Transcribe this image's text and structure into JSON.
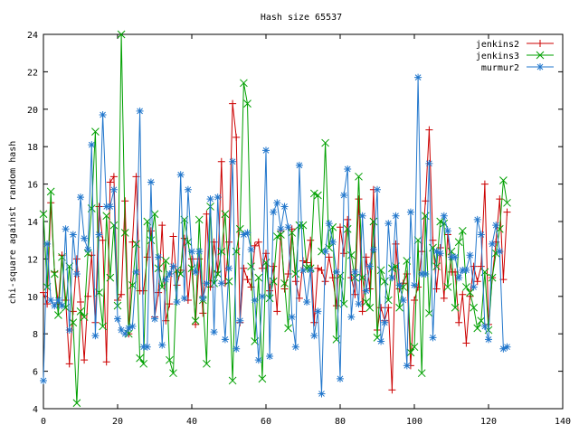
{
  "chart_data": {
    "type": "line",
    "title": "Hash size 65537",
    "xlabel": "",
    "ylabel": "chi-square against random hash",
    "xlim": [
      0,
      140
    ],
    "ylim": [
      4,
      24
    ],
    "xticks": [
      0,
      20,
      40,
      60,
      80,
      100,
      120,
      140
    ],
    "yticks": [
      4,
      6,
      8,
      10,
      12,
      14,
      16,
      18,
      20,
      22,
      24
    ],
    "grid": false,
    "legend_position": "top-right",
    "series": [
      {
        "name": "jenkins2",
        "color": "#cc0000",
        "marker": "plus",
        "y": [
          10.2,
          9.6,
          15.0,
          11.3,
          9.6,
          12.2,
          9.8,
          6.4,
          9.2,
          12.0,
          9.7,
          6.6,
          10.0,
          12.2,
          8.6,
          14.8,
          13.0,
          6.5,
          16.1,
          16.4,
          9.8,
          10.1,
          15.1,
          8.0,
          12.9,
          16.4,
          10.3,
          10.3,
          12.1,
          13.5,
          8.9,
          10.2,
          13.8,
          8.7,
          9.6,
          13.2,
          10.6,
          11.4,
          13.1,
          9.8,
          12.0,
          8.5,
          12.0,
          9.1,
          14.4,
          10.5,
          12.9,
          11.3,
          17.2,
          10.7,
          12.9,
          20.3,
          18.5,
          8.6,
          11.5,
          10.9,
          10.5,
          12.7,
          12.9,
          11.5,
          12.3,
          10.3,
          11.6,
          9.2,
          13.5,
          10.4,
          11.2,
          13.6,
          10.8,
          9.9,
          11.9,
          11.8,
          13.0,
          8.6,
          11.5,
          11.4,
          10.8,
          12.1,
          11.0,
          9.5,
          13.7,
          12.3,
          14.1,
          11.0,
          10.1,
          15.2,
          9.2,
          12.1,
          10.4,
          15.7,
          8.2,
          9.4,
          8.7,
          9.4,
          5.0,
          12.8,
          10.4,
          10.7,
          11.2,
          6.3,
          9.8,
          10.5,
          12.4,
          15.1,
          18.9,
          13.0,
          10.4,
          12.6,
          9.9,
          13.3,
          11.3,
          11.3,
          8.6,
          10.1,
          7.5,
          10.0,
          11.6,
          10.8,
          11.6,
          16.0,
          8.5,
          11.0,
          12.9,
          15.2,
          10.9,
          14.5
        ]
      },
      {
        "name": "jenkins3",
        "color": "#00a000",
        "marker": "cross",
        "y": [
          14.4,
          10.5,
          15.6,
          11.2,
          9.0,
          12.1,
          9.4,
          11.6,
          8.6,
          4.3,
          9.2,
          8.9,
          12.3,
          14.7,
          18.8,
          10.2,
          8.4,
          14.3,
          11.0,
          13.8,
          9.5,
          24.0,
          13.4,
          8.0,
          10.6,
          12.8,
          6.7,
          6.4,
          14.0,
          13.0,
          14.4,
          11.5,
          10.5,
          11.9,
          6.6,
          5.9,
          11.4,
          11.2,
          14.1,
          12.9,
          11.5,
          8.7,
          14.1,
          9.8,
          6.4,
          14.8,
          10.7,
          11.2,
          12.4,
          14.4,
          10.8,
          5.5,
          12.4,
          13.6,
          21.4,
          20.3,
          11.6,
          7.6,
          11.0,
          5.6,
          11.8,
          9.9,
          10.8,
          13.2,
          13.3,
          10.7,
          8.3,
          13.4,
          11.2,
          13.8,
          13.8,
          11.5,
          11.5,
          15.5,
          15.4,
          12.4,
          18.2,
          12.6,
          13.7,
          7.7,
          11.1,
          9.6,
          13.6,
          12.2,
          11.0,
          16.4,
          11.0,
          9.7,
          9.4,
          14.0,
          7.8,
          11.4,
          10.8,
          9.8,
          11.5,
          11.6,
          9.4,
          10.5,
          11.9,
          7.0,
          7.3,
          13.0,
          5.9,
          14.3,
          9.1,
          12.6,
          11.6,
          14.0,
          13.9,
          10.5,
          12.4,
          9.4,
          12.9,
          13.5,
          10.5,
          10.2,
          9.4,
          8.3,
          8.7,
          11.3,
          8.2,
          11.0,
          12.3,
          13.6,
          16.2,
          15.0
        ]
      },
      {
        "name": "murmur2",
        "color": "#2277cc",
        "marker": "star",
        "y": [
          5.5,
          12.8,
          9.8,
          9.5,
          9.8,
          9.5,
          13.6,
          8.2,
          13.3,
          11.2,
          15.3,
          13.1,
          12.5,
          18.1,
          7.9,
          13.3,
          19.7,
          14.8,
          14.8,
          15.7,
          8.8,
          8.2,
          8.0,
          8.3,
          8.4,
          11.3,
          19.9,
          7.3,
          7.3,
          16.1,
          8.8,
          12.1,
          7.4,
          10.9,
          11.2,
          11.6,
          9.7,
          16.5,
          9.9,
          15.7,
          12.4,
          11.3,
          12.4,
          9.9,
          10.7,
          15.2,
          8.1,
          15.3,
          10.7,
          7.7,
          11.5,
          17.2,
          7.2,
          8.7,
          13.3,
          13.4,
          12.5,
          9.8,
          6.6,
          10.0,
          17.8,
          6.8,
          14.5,
          15.0,
          13.6,
          14.8,
          13.7,
          8.9,
          7.3,
          17.0,
          11.4,
          9.7,
          11.4,
          7.9,
          9.2,
          4.8,
          12.4,
          13.9,
          12.9,
          11.3,
          5.6,
          15.4,
          16.8,
          8.9,
          11.3,
          9.6,
          14.3,
          10.3,
          11.6,
          12.5,
          15.7,
          7.6,
          8.6,
          13.9,
          11.0,
          14.3,
          10.6,
          9.8,
          6.3,
          14.5,
          10.6,
          21.7,
          11.2,
          11.2,
          17.1,
          7.8,
          12.4,
          12.3,
          14.3,
          13.5,
          12.1,
          12.1,
          11.0,
          11.4,
          11.4,
          12.2,
          10.5,
          14.1,
          13.3,
          8.4,
          7.7,
          12.8,
          13.8,
          12.4,
          7.2,
          7.3
        ]
      }
    ]
  }
}
